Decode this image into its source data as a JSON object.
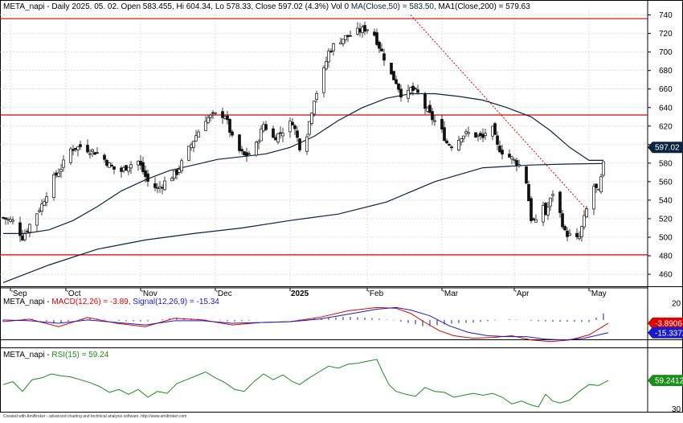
{
  "header": {
    "title_prefix": "META_napi - Daily 2025. 05. 02. Open 583.455, Hi 604.34, Lo 578.33, Close 597.02 (4.3%) Vol 0",
    "ma50": "MA(Close,50) = 583.50,",
    "ma200": "MA1(Close,200) = 579.63"
  },
  "colors": {
    "background": "#ffffff",
    "grid": "#c8c8c8",
    "candle": "#101010",
    "ma": "#0b2240",
    "support_resistance": "#e00000",
    "trendline": "#e00000",
    "macd": "#e00000",
    "signal": "#1a1acc",
    "hist": "#1a1a99",
    "rsi": "#1c8c1c",
    "price_badge": "#0b2240"
  },
  "footer": "Created with AmiBroker - advanced charting and technical analysis software. http://www.amibroker.com",
  "chart_data": [
    {
      "type": "candlestick",
      "panel": "price",
      "title": "META_napi - Daily 2025. 05. 02.",
      "x_labels": [
        "Sep",
        "Oct",
        "Nov",
        "Dec",
        "2025",
        "Feb",
        "Mar",
        "Apr",
        "May"
      ],
      "x_label_days": [
        4,
        27,
        58,
        89,
        120,
        152,
        183,
        213,
        244
      ],
      "x_axis_start": "2024-08-30",
      "ylim": [
        447,
        744
      ],
      "yticks": [
        460,
        480,
        500,
        520,
        540,
        560,
        580,
        600,
        620,
        640,
        660,
        680,
        700,
        720,
        740
      ],
      "grid": true,
      "last_close": 597.02,
      "last_close_label": "597.02",
      "horizontal_lines": [
        {
          "name": "resistance-top",
          "value": 736
        },
        {
          "name": "resistance-mid",
          "value": 632
        },
        {
          "name": "support-bottom",
          "value": 481
        }
      ],
      "trendline": {
        "style": "dotted",
        "from": {
          "day": 170,
          "value": 740
        },
        "to": {
          "day": 243,
          "value": 530
        }
      },
      "close_path": [
        [
          1,
          521
        ],
        [
          5,
          517
        ],
        [
          9,
          500
        ],
        [
          13,
          518
        ],
        [
          17,
          535
        ],
        [
          21,
          560
        ],
        [
          25,
          575
        ],
        [
          29,
          595
        ],
        [
          33,
          598
        ],
        [
          37,
          594
        ],
        [
          41,
          590
        ],
        [
          45,
          578
        ],
        [
          49,
          569
        ],
        [
          53,
          578
        ],
        [
          57,
          582
        ],
        [
          61,
          560
        ],
        [
          65,
          552
        ],
        [
          69,
          562
        ],
        [
          73,
          570
        ],
        [
          77,
          590
        ],
        [
          81,
          610
        ],
        [
          85,
          628
        ],
        [
          89,
          632
        ],
        [
          93,
          632
        ],
        [
          97,
          598
        ],
        [
          101,
          588
        ],
        [
          105,
          592
        ],
        [
          109,
          622
        ],
        [
          113,
          607
        ],
        [
          117,
          615
        ],
        [
          121,
          625
        ],
        [
          124,
          598
        ],
        [
          127,
          612
        ],
        [
          130,
          650
        ],
        [
          133,
          670
        ],
        [
          136,
          700
        ],
        [
          139,
          710
        ],
        [
          142,
          715
        ],
        [
          145,
          718
        ],
        [
          148,
          722
        ],
        [
          151,
          725
        ],
        [
          154,
          726
        ],
        [
          156,
          712
        ],
        [
          158,
          700
        ],
        [
          160,
          688
        ],
        [
          162,
          675
        ],
        [
          164,
          668
        ],
        [
          166,
          655
        ],
        [
          168,
          650
        ],
        [
          170,
          660
        ],
        [
          173,
          655
        ],
        [
          176,
          640
        ],
        [
          179,
          628
        ],
        [
          182,
          620
        ],
        [
          185,
          602
        ],
        [
          188,
          598
        ],
        [
          191,
          610
        ],
        [
          194,
          612
        ],
        [
          197,
          610
        ],
        [
          200,
          607
        ],
        [
          203,
          625
        ],
        [
          206,
          598
        ],
        [
          209,
          590
        ],
        [
          212,
          585
        ],
        [
          215,
          578
        ],
        [
          218,
          560
        ],
        [
          220,
          520
        ],
        [
          222,
          515
        ],
        [
          224,
          545
        ],
        [
          226,
          525
        ],
        [
          228,
          540
        ],
        [
          230,
          556
        ],
        [
          232,
          525
        ],
        [
          234,
          505
        ],
        [
          236,
          502
        ],
        [
          238,
          495
        ],
        [
          240,
          500
        ],
        [
          242,
          520
        ],
        [
          244,
          540
        ],
        [
          246,
          555
        ],
        [
          248,
          548
        ],
        [
          250,
          578
        ],
        [
          252,
          597
        ]
      ],
      "series": [
        {
          "name": "MA(Close,50)",
          "value": 583.5,
          "points": [
            [
              1,
              504
            ],
            [
              10,
              504
            ],
            [
              20,
              508
            ],
            [
              30,
              518
            ],
            [
              40,
              533
            ],
            [
              50,
              550
            ],
            [
              60,
              562
            ],
            [
              70,
              572
            ],
            [
              80,
              578
            ],
            [
              90,
              584
            ],
            [
              100,
              587
            ],
            [
              110,
              590
            ],
            [
              120,
              597
            ],
            [
              130,
              609
            ],
            [
              140,
              626
            ],
            [
              150,
              640
            ],
            [
              160,
              650
            ],
            [
              170,
              655
            ],
            [
              180,
              655
            ],
            [
              190,
              652
            ],
            [
              200,
              648
            ],
            [
              210,
              640
            ],
            [
              220,
              630
            ],
            [
              228,
              615
            ],
            [
              236,
              597
            ],
            [
              244,
              583
            ],
            [
              250,
              583
            ]
          ]
        },
        {
          "name": "MA1(Close,200)",
          "value": 579.63,
          "points": [
            [
              1,
              451
            ],
            [
              20,
              470
            ],
            [
              40,
              487
            ],
            [
              60,
              497
            ],
            [
              80,
              504
            ],
            [
              100,
              510
            ],
            [
              120,
              518
            ],
            [
              140,
              525
            ],
            [
              160,
              538
            ],
            [
              180,
              560
            ],
            [
              200,
              575
            ],
            [
              220,
              578
            ],
            [
              235,
              579
            ],
            [
              250,
              579.6
            ]
          ]
        }
      ]
    },
    {
      "type": "line",
      "panel": "macd",
      "title": "MACD(12,26) = -3.89, Signal(12,26,9) = -15.34",
      "macd_label": "MACD(12,26) = -3.89,",
      "signal_label": "Signal(12,26,9) = -15.34",
      "ylim": [
        -33,
        27
      ],
      "yticks": [
        20
      ],
      "badges": [
        {
          "name": "MACD",
          "value": -3.89,
          "label": "-3.8906"
        },
        {
          "name": "Signal",
          "value": -15.34,
          "label": "-15.3372"
        }
      ],
      "series": [
        {
          "name": "MACD(12,26)",
          "value": -3.89,
          "points": [
            [
              1,
              -2
            ],
            [
              12,
              1
            ],
            [
              24,
              -8
            ],
            [
              36,
              3
            ],
            [
              48,
              -4
            ],
            [
              60,
              -8
            ],
            [
              72,
              2
            ],
            [
              84,
              0
            ],
            [
              96,
              -6
            ],
            [
              108,
              -3
            ],
            [
              120,
              -2
            ],
            [
              132,
              3
            ],
            [
              144,
              11
            ],
            [
              156,
              15
            ],
            [
              164,
              14
            ],
            [
              170,
              8
            ],
            [
              176,
              -3
            ],
            [
              182,
              -13
            ],
            [
              188,
              -19
            ],
            [
              196,
              -22
            ],
            [
              204,
              -21
            ],
            [
              212,
              -19
            ],
            [
              220,
              -24
            ],
            [
              228,
              -26
            ],
            [
              236,
              -24
            ],
            [
              244,
              -18
            ],
            [
              252,
              -3.89
            ]
          ]
        },
        {
          "name": "Signal(12,26,9)",
          "value": -15.34,
          "points": [
            [
              1,
              0
            ],
            [
              12,
              -1
            ],
            [
              24,
              -4
            ],
            [
              36,
              0
            ],
            [
              48,
              -3
            ],
            [
              60,
              -6
            ],
            [
              72,
              -1
            ],
            [
              84,
              -1
            ],
            [
              96,
              -4
            ],
            [
              108,
              -3
            ],
            [
              120,
              -2
            ],
            [
              132,
              1
            ],
            [
              144,
              7
            ],
            [
              156,
              13
            ],
            [
              164,
              15
            ],
            [
              170,
              12
            ],
            [
              178,
              5
            ],
            [
              186,
              -7
            ],
            [
              194,
              -15
            ],
            [
              202,
              -19
            ],
            [
              210,
              -20
            ],
            [
              218,
              -20
            ],
            [
              226,
              -23
            ],
            [
              234,
              -24
            ],
            [
              242,
              -22
            ],
            [
              252,
              -15.34
            ]
          ]
        }
      ]
    },
    {
      "type": "line",
      "panel": "rsi",
      "title": "RSI(15) = 59.24",
      "rsi_label": "RSI(15) = 59.24",
      "ylim": [
        27,
        90
      ],
      "yticks": [
        30
      ],
      "badges": [
        {
          "name": "RSI",
          "value": 59.24,
          "label": "59.2412"
        }
      ],
      "series": [
        {
          "name": "RSI(15)",
          "value": 59.24,
          "points": [
            [
              1,
              55
            ],
            [
              5,
              58
            ],
            [
              9,
              48
            ],
            [
              13,
              60
            ],
            [
              17,
              62
            ],
            [
              21,
              66
            ],
            [
              25,
              64
            ],
            [
              29,
              63
            ],
            [
              33,
              60
            ],
            [
              37,
              57
            ],
            [
              41,
              53
            ],
            [
              45,
              47
            ],
            [
              49,
              50
            ],
            [
              53,
              45
            ],
            [
              57,
              50
            ],
            [
              61,
              42
            ],
            [
              65,
              48
            ],
            [
              69,
              46
            ],
            [
              73,
              56
            ],
            [
              77,
              60
            ],
            [
              81,
              64
            ],
            [
              85,
              68
            ],
            [
              89,
              62
            ],
            [
              93,
              57
            ],
            [
              97,
              50
            ],
            [
              101,
              48
            ],
            [
              105,
              58
            ],
            [
              109,
              66
            ],
            [
              113,
              60
            ],
            [
              117,
              65
            ],
            [
              121,
              58
            ],
            [
              124,
              55
            ],
            [
              128,
              62
            ],
            [
              132,
              68
            ],
            [
              136,
              74
            ],
            [
              140,
              72
            ],
            [
              144,
              76
            ],
            [
              148,
              77
            ],
            [
              152,
              79
            ],
            [
              156,
              81
            ],
            [
              158,
              70
            ],
            [
              161,
              55
            ],
            [
              164,
              48
            ],
            [
              168,
              45
            ],
            [
              172,
              43
            ],
            [
              176,
              52
            ],
            [
              180,
              48
            ],
            [
              184,
              47
            ],
            [
              188,
              42
            ],
            [
              192,
              44
            ],
            [
              196,
              46
            ],
            [
              200,
              44
            ],
            [
              204,
              46
            ],
            [
              208,
              42
            ],
            [
              212,
              35
            ],
            [
              216,
              38
            ],
            [
              220,
              34
            ],
            [
              223,
              32
            ],
            [
              226,
              45
            ],
            [
              229,
              38
            ],
            [
              232,
              36
            ],
            [
              236,
              39
            ],
            [
              240,
              48
            ],
            [
              244,
              55
            ],
            [
              248,
              54
            ],
            [
              252,
              59.24
            ]
          ]
        }
      ]
    }
  ]
}
